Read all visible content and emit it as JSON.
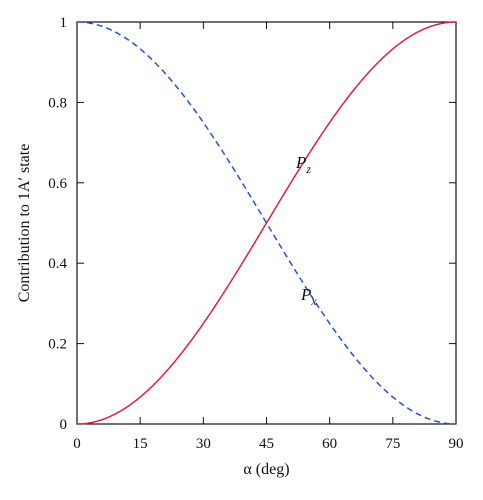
{
  "chart_data": {
    "type": "line",
    "title": "",
    "xlabel": "α (deg)",
    "ylabel": "Contribution to 1A′ state",
    "xlim": [
      0,
      90
    ],
    "ylim": [
      0,
      1
    ],
    "x_ticks": [
      0,
      15,
      30,
      45,
      60,
      75,
      90
    ],
    "y_ticks": [
      0,
      0.2,
      0.4,
      0.6,
      0.8,
      1
    ],
    "x_tick_labels": [
      "0",
      "15",
      "30",
      "45",
      "60",
      "75",
      "90"
    ],
    "y_tick_labels": [
      "0",
      "0.2",
      "0.4",
      "0.6",
      "0.8",
      "1"
    ],
    "grid": false,
    "x": [
      0,
      5,
      10,
      15,
      20,
      25,
      30,
      35,
      38.9,
      45,
      50,
      55,
      60,
      65,
      70,
      75,
      80,
      85,
      90
    ],
    "series": [
      {
        "label_main": "P",
        "label_sub": "z",
        "color": "#e0203a",
        "line_style": "solid",
        "values": [
          0,
          0.008,
          0.03,
          0.067,
          0.117,
          0.179,
          0.25,
          0.329,
          0.5,
          0.5,
          0.587,
          0.671,
          0.75,
          0.821,
          0.883,
          0.933,
          0.97,
          0.992,
          1
        ]
      },
      {
        "label_main": "P",
        "label_sub": "x",
        "color": "#2a4fd6",
        "line_style": "dashed",
        "values": [
          1,
          0.992,
          0.97,
          0.933,
          0.883,
          0.821,
          0.75,
          0.671,
          0.5,
          0.5,
          0.413,
          0.329,
          0.25,
          0.179,
          0.117,
          0.067,
          0.03,
          0.008,
          0
        ]
      }
    ]
  }
}
